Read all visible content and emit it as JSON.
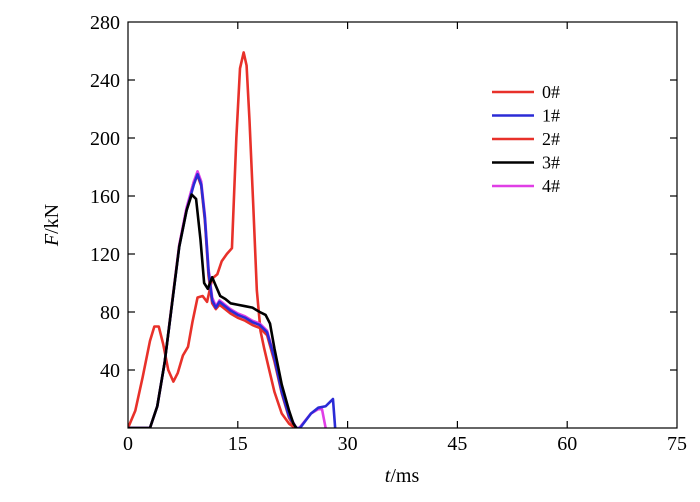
{
  "chart_data": {
    "type": "line",
    "title": "",
    "xlabel": {
      "var": "t",
      "unit": "/ms"
    },
    "ylabel": {
      "var": "F",
      "unit": "/kN"
    },
    "xlim": [
      0,
      75
    ],
    "ylim": [
      0,
      280
    ],
    "xticks": [
      0,
      15,
      30,
      45,
      60,
      75
    ],
    "yticks": [
      40,
      80,
      120,
      160,
      200,
      240,
      280
    ],
    "yticks_labels": [
      "40",
      "80",
      "120",
      "160",
      "200",
      "240",
      "280"
    ],
    "xticks_labels": [
      "0",
      "15",
      "30",
      "45",
      "60",
      "75"
    ],
    "origin_label": "0",
    "grid": false,
    "legend_position": "top-right",
    "series": [
      {
        "name": "0#",
        "color": "#e8312a",
        "x": [
          0,
          1,
          2,
          3,
          3.6,
          4.2,
          4.8,
          5.5,
          6.2,
          6.8,
          7.5,
          8.2,
          8.8,
          9.5,
          10.2,
          10.8,
          11.5,
          12.2,
          12.8,
          13.5,
          14.2,
          14.8,
          15.3,
          15.8,
          16.2,
          16.6,
          17.1,
          17.6,
          18.1,
          18.6,
          19.2,
          20,
          21,
          22,
          22.8
        ],
        "y": [
          0,
          12,
          35,
          60,
          70,
          70,
          58,
          40,
          32,
          38,
          50,
          56,
          73,
          90,
          91,
          87,
          103,
          106,
          115,
          120,
          124,
          200,
          248,
          259,
          250,
          212,
          155,
          95,
          67,
          55,
          42,
          25,
          10,
          3,
          0
        ]
      },
      {
        "name": "1#",
        "color": "#2b2bd6",
        "x": [
          0,
          3,
          4,
          5,
          6,
          7,
          8,
          9,
          9.5,
          10,
          10.5,
          11,
          11.5,
          12,
          12.5,
          13,
          14,
          15,
          16,
          17,
          18,
          19,
          20,
          21,
          22,
          23,
          23.5,
          25,
          26,
          27,
          27.6,
          28,
          28.3
        ],
        "y": [
          0,
          0,
          15,
          45,
          85,
          125,
          150,
          168,
          175,
          168,
          145,
          108,
          88,
          83,
          87,
          85,
          81,
          78,
          76,
          73,
          71,
          66,
          48,
          25,
          8,
          0,
          0,
          10,
          14,
          15,
          18,
          20,
          0
        ]
      },
      {
        "name": "2#",
        "color": "#e8312a",
        "x": [
          0,
          3,
          4,
          5,
          6,
          7,
          8,
          9,
          9.5,
          10,
          10.5,
          11,
          11.5,
          12,
          12.5,
          13,
          14,
          15,
          16,
          17,
          18,
          19,
          20,
          21,
          22,
          22.8
        ],
        "y": [
          0,
          0,
          15,
          45,
          86,
          126,
          151,
          170,
          174,
          167,
          143,
          105,
          86,
          82,
          85,
          83,
          79,
          76,
          74,
          71,
          69,
          64,
          46,
          24,
          7,
          0
        ]
      },
      {
        "name": "3#",
        "color": "#000000",
        "x": [
          0,
          3,
          4,
          5,
          6,
          7,
          8,
          8.7,
          9.3,
          9.9,
          10.4,
          10.9,
          11.5,
          12,
          12.6,
          13.3,
          14,
          15,
          16,
          17,
          18,
          18.8,
          19.4,
          20,
          21,
          22,
          22.6,
          23
        ],
        "y": [
          0,
          0,
          15,
          45,
          85,
          125,
          150,
          161,
          158,
          130,
          100,
          96,
          104,
          98,
          91,
          89,
          86,
          85,
          84,
          83,
          80,
          78,
          72,
          55,
          30,
          12,
          3,
          0
        ]
      },
      {
        "name": "4#",
        "color": "#e03ee6",
        "x": [
          0,
          3,
          4,
          5,
          6,
          7,
          8,
          9,
          9.5,
          10,
          10.5,
          11,
          11.5,
          12,
          12.5,
          13,
          14,
          15,
          16,
          17,
          18,
          19,
          20,
          21,
          22,
          23,
          23.4,
          25,
          26,
          26.5,
          27
        ],
        "y": [
          0,
          0,
          15,
          45,
          85,
          126,
          152,
          170,
          177,
          170,
          147,
          110,
          90,
          84,
          88,
          86,
          82,
          79,
          77,
          74,
          72,
          67,
          49,
          26,
          9,
          0,
          0,
          10,
          13,
          13,
          0
        ]
      }
    ]
  }
}
